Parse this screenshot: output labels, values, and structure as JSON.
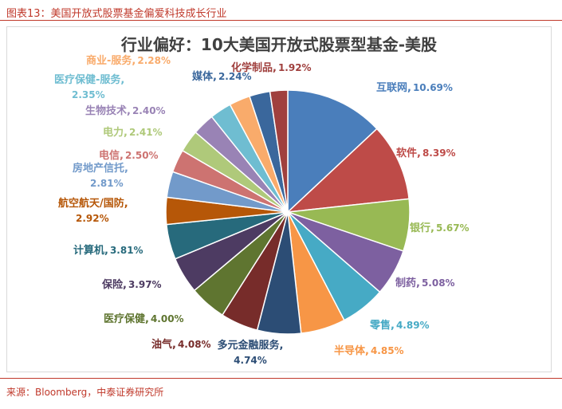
{
  "header": {
    "caption": "图表13：美国开放式股票基金偏爱科技成长行业"
  },
  "footer": {
    "source": "来源：Bloomberg，中泰证券研究所"
  },
  "chart_data": {
    "type": "pie",
    "title": "行业偏好：10大美国开放式股票型基金-美股",
    "slices": [
      {
        "label": "互联网",
        "value": 10.69,
        "display": "10.69%",
        "color": "#4a7ebb"
      },
      {
        "label": "软件",
        "value": 8.39,
        "display": "8.39%",
        "color": "#be4b48"
      },
      {
        "label": "银行",
        "value": 5.67,
        "display": "5.67%",
        "color": "#98b954"
      },
      {
        "label": "制药",
        "value": 5.08,
        "display": "5.08%",
        "color": "#7d60a0"
      },
      {
        "label": "零售",
        "value": 4.89,
        "display": "4.89%",
        "color": "#46aac5"
      },
      {
        "label": "半导体",
        "value": 4.85,
        "display": "4.85%",
        "color": "#f79646"
      },
      {
        "label": "多元金融服务",
        "value": 4.74,
        "display": "4.74%",
        "color": "#2c4d75"
      },
      {
        "label": "油气",
        "value": 4.08,
        "display": "4.08%",
        "color": "#772c2a"
      },
      {
        "label": "医疗保健",
        "value": 4.0,
        "display": "4.00%",
        "color": "#5f7530"
      },
      {
        "label": "保险",
        "value": 3.97,
        "display": "3.97%",
        "color": "#4d3b62"
      },
      {
        "label": "计算机",
        "value": 3.81,
        "display": "3.81%",
        "color": "#276a7c"
      },
      {
        "label": "航空航天/国防",
        "value": 2.92,
        "display": "2.92%",
        "color": "#b65708"
      },
      {
        "label": "房地产信托",
        "value": 2.81,
        "display": "2.81%",
        "color": "#729aca"
      },
      {
        "label": "电信",
        "value": 2.5,
        "display": "2.50%",
        "color": "#cd7371"
      },
      {
        "label": "电力",
        "value": 2.41,
        "display": "2.41%",
        "color": "#afc97a"
      },
      {
        "label": "生物技术",
        "value": 2.4,
        "display": "2.40%",
        "color": "#9983b5"
      },
      {
        "label": "医疗保健-服务",
        "value": 2.35,
        "display": "2.35%",
        "color": "#6fbdd1"
      },
      {
        "label": "商业-服务",
        "value": 2.28,
        "display": "2.28%",
        "color": "#f9ab6b"
      },
      {
        "label": "媒体",
        "value": 2.24,
        "display": "2.24%",
        "color": "#3a679c"
      },
      {
        "label": "化学制品",
        "value": 1.92,
        "display": "1.92%",
        "color": "#a0403e"
      }
    ]
  }
}
